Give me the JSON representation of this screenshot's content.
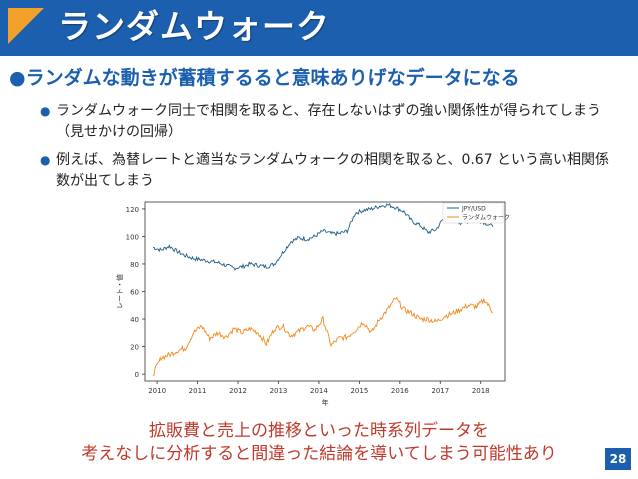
{
  "slide": {
    "title": "ランダムウォーク",
    "lead": "ランダムな動きが蓄積するると意味ありげなデータになる",
    "bullets": [
      "ランダムウォーク同士で相関を取ると、存在しないはずの強い関係性が得られてしまう（見せかけの回帰）",
      "例えば、為替レートと適当なランダムウォークの相関を取ると、0.67 という高い相関係数が出てしまう"
    ],
    "bottom_lines": [
      "拡販費と売上の推移といった時系列データを",
      "考えなしに分析すると間違った結論を導いてしまう可能性あり"
    ],
    "page_number": "28"
  },
  "colors": {
    "title_bar": "#1b5fae",
    "accent_triangle": "#f2a22a",
    "lead_text": "#1b5fae",
    "bottom_text": "#c0392b",
    "series_jpy": "#1f5f8b",
    "series_rw": "#f28a1c"
  },
  "chart_data": {
    "type": "line",
    "xlabel": "年",
    "ylabel": "レート・値",
    "x_ticks": [
      "2010",
      "2011",
      "2012",
      "2013",
      "2014",
      "2015",
      "2016",
      "2017",
      "2018"
    ],
    "y_ticks": [
      "0",
      "20",
      "40",
      "60",
      "80",
      "100",
      "120"
    ],
    "xlim": [
      2009.7,
      2018.6
    ],
    "ylim": [
      -5,
      125
    ],
    "legend_position": "top-right",
    "series": [
      {
        "name": "JPY/USD",
        "x": [
          2009.9,
          2010.1,
          2010.3,
          2010.5,
          2010.7,
          2010.9,
          2011.1,
          2011.3,
          2011.5,
          2011.7,
          2011.9,
          2012.1,
          2012.3,
          2012.5,
          2012.7,
          2012.9,
          2013.1,
          2013.3,
          2013.5,
          2013.7,
          2013.9,
          2014.1,
          2014.3,
          2014.5,
          2014.7,
          2014.9,
          2015.1,
          2015.3,
          2015.5,
          2015.7,
          2015.9,
          2016.1,
          2016.3,
          2016.5,
          2016.7,
          2016.9,
          2017.1,
          2017.3,
          2017.5,
          2017.7,
          2017.9,
          2018.1,
          2018.3
        ],
        "values": [
          92,
          90,
          93,
          89,
          86,
          84,
          83,
          82,
          81,
          79,
          77,
          78,
          80,
          79,
          78,
          80,
          88,
          96,
          99,
          98,
          100,
          104,
          102,
          102,
          104,
          117,
          119,
          120,
          122,
          123,
          121,
          118,
          111,
          108,
          103,
          105,
          114,
          112,
          110,
          111,
          112,
          110,
          107
        ]
      },
      {
        "name": "ランダムウォーク",
        "x": [
          2009.9,
          2010.1,
          2010.3,
          2010.5,
          2010.7,
          2010.9,
          2011.1,
          2011.3,
          2011.5,
          2011.7,
          2011.9,
          2012.1,
          2012.3,
          2012.5,
          2012.7,
          2012.9,
          2013.1,
          2013.3,
          2013.5,
          2013.7,
          2013.9,
          2014.1,
          2014.3,
          2014.5,
          2014.7,
          2014.9,
          2015.1,
          2015.3,
          2015.5,
          2015.7,
          2015.9,
          2016.1,
          2016.3,
          2016.5,
          2016.7,
          2016.9,
          2017.1,
          2017.3,
          2017.5,
          2017.7,
          2017.9,
          2018.1,
          2018.3
        ],
        "values": [
          0,
          12,
          14,
          17,
          19,
          30,
          35,
          26,
          30,
          27,
          33,
          30,
          33,
          30,
          22,
          33,
          35,
          28,
          31,
          35,
          32,
          40,
          21,
          26,
          27,
          32,
          38,
          30,
          40,
          47,
          55,
          47,
          44,
          40,
          40,
          38,
          42,
          44,
          47,
          50,
          49,
          54,
          45
        ]
      }
    ]
  }
}
